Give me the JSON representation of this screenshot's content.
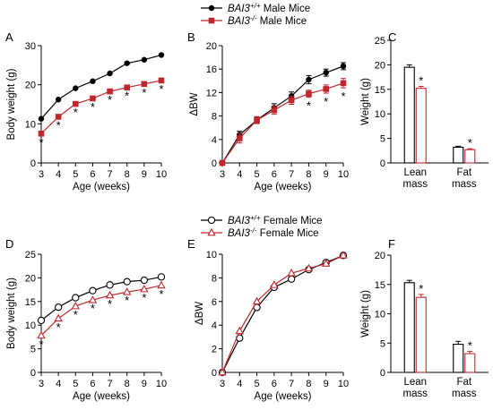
{
  "legend_top": {
    "entries": [
      {
        "genotype_base": "BAI3",
        "genotype_sup": "+/+",
        "label": "Male Mice",
        "color": "#000000",
        "marker": "filled-circle"
      },
      {
        "genotype_base": "BAI3",
        "genotype_sup": "-/-",
        "label": "Male Mice",
        "color": "#c0272d",
        "marker": "filled-square"
      }
    ]
  },
  "legend_bottom": {
    "entries": [
      {
        "genotype_base": "BAI3",
        "genotype_sup": "+/+",
        "label": "Female Mice",
        "color": "#000000",
        "marker": "open-circle"
      },
      {
        "genotype_base": "BAI3",
        "genotype_sup": "-/-",
        "label": "Female Mice",
        "color": "#c0272d",
        "marker": "open-triangle"
      }
    ]
  },
  "chart_data": [
    {
      "panel": "A",
      "type": "line",
      "xlabel": "Age (weeks)",
      "ylabel": "Body weight (g)",
      "x": [
        3,
        4,
        5,
        6,
        7,
        8,
        9,
        10
      ],
      "xlim": [
        3,
        10
      ],
      "ylim": [
        0,
        30
      ],
      "yticks": [
        0,
        10,
        20,
        30
      ],
      "series": [
        {
          "name": "BAI3+/+ Male Mice",
          "color": "#000000",
          "marker": "filled-circle",
          "values": [
            11.3,
            16.2,
            19.1,
            20.9,
            22.9,
            25.5,
            26.4,
            27.6
          ]
        },
        {
          "name": "BAI3-/- Male Mice",
          "color": "#c0272d",
          "marker": "filled-square",
          "values": [
            7.5,
            11.8,
            15.1,
            16.5,
            18.3,
            19.3,
            20.2,
            21.1
          ]
        }
      ],
      "significance": [
        "*",
        "*",
        "*",
        "*",
        "*",
        "*",
        "*",
        "*"
      ]
    },
    {
      "panel": "B",
      "type": "line",
      "xlabel": "Age (weeks)",
      "ylabel": "ΔBW",
      "x": [
        3,
        4,
        5,
        6,
        7,
        8,
        9,
        10
      ],
      "xlim": [
        3,
        10
      ],
      "ylim": [
        0,
        20
      ],
      "yticks": [
        0,
        4,
        8,
        12,
        16,
        20
      ],
      "series": [
        {
          "name": "BAI3+/+ Male Mice",
          "color": "#000000",
          "marker": "filled-circle",
          "values": [
            0,
            4.8,
            7.3,
            9.4,
            11.4,
            14.2,
            15.4,
            16.5
          ],
          "error": [
            0,
            0.6,
            0.5,
            0.7,
            0.7,
            0.7,
            0.6,
            0.6
          ]
        },
        {
          "name": "BAI3-/- Male Mice",
          "color": "#c0272d",
          "marker": "filled-square",
          "values": [
            0,
            4.2,
            7.3,
            9.0,
            10.7,
            11.8,
            12.6,
            13.6
          ],
          "error": [
            0,
            0.8,
            0.6,
            0.7,
            0.7,
            0.6,
            0.7,
            0.8
          ]
        }
      ],
      "significance": [
        "",
        "",
        "",
        "",
        "",
        "*",
        "*",
        "*"
      ]
    },
    {
      "panel": "C",
      "type": "bar",
      "ylabel": "Weight (g)",
      "categories": [
        [
          "Lean",
          "mass"
        ],
        [
          "Fat",
          "mass"
        ]
      ],
      "ylim": [
        0,
        25
      ],
      "yticks": [
        0,
        5,
        10,
        15,
        20,
        25
      ],
      "series": [
        {
          "name": "BAI3+/+ Male Mice",
          "color": "#000000",
          "values": [
            19.5,
            3.2
          ],
          "error": [
            0.5,
            0.2
          ]
        },
        {
          "name": "BAI3-/- Male Mice",
          "color": "#c0272d",
          "values": [
            15.2,
            2.7
          ],
          "error": [
            0.4,
            0.2
          ]
        }
      ],
      "significance": [
        "*",
        "*"
      ]
    },
    {
      "panel": "D",
      "type": "line",
      "xlabel": "Age (weeks)",
      "ylabel": "Body weight (g)",
      "x": [
        3,
        4,
        5,
        6,
        7,
        8,
        9,
        10
      ],
      "xlim": [
        3,
        10
      ],
      "ylim": [
        0,
        25
      ],
      "yticks": [
        0,
        5,
        10,
        15,
        20,
        25
      ],
      "series": [
        {
          "name": "BAI3+/+ Female Mice",
          "color": "#000000",
          "marker": "open-circle",
          "values": [
            11.0,
            13.8,
            15.8,
            17.3,
            18.5,
            19.2,
            19.5,
            20.2
          ]
        },
        {
          "name": "BAI3-/- Female Mice",
          "color": "#c0272d",
          "marker": "open-triangle",
          "values": [
            7.8,
            11.4,
            14.0,
            15.3,
            16.3,
            17.0,
            17.6,
            18.4
          ]
        }
      ],
      "significance": [
        "*",
        "*",
        "*",
        "*",
        "*",
        "*",
        "*",
        "*"
      ]
    },
    {
      "panel": "E",
      "type": "line",
      "xlabel": "Age (weeks)",
      "ylabel": "ΔBW",
      "x": [
        3,
        4,
        5,
        6,
        7,
        8,
        9,
        10
      ],
      "xlim": [
        3,
        10
      ],
      "ylim": [
        0,
        10
      ],
      "yticks": [
        0,
        2,
        4,
        6,
        8,
        10
      ],
      "series": [
        {
          "name": "BAI3+/+ Female Mice",
          "color": "#000000",
          "marker": "open-circle",
          "values": [
            0,
            2.9,
            5.5,
            7.2,
            7.9,
            8.7,
            9.3,
            9.9
          ]
        },
        {
          "name": "BAI3-/- Female Mice",
          "color": "#c0272d",
          "marker": "open-triangle",
          "values": [
            0,
            3.5,
            6.0,
            7.4,
            8.4,
            8.8,
            9.2,
            9.9
          ]
        }
      ],
      "significance": [
        "",
        "",
        "",
        "",
        "",
        "",
        "",
        ""
      ]
    },
    {
      "panel": "F",
      "type": "bar",
      "ylabel": "Weight (g)",
      "categories": [
        [
          "Lean",
          "mass"
        ],
        [
          "Fat",
          "mass"
        ]
      ],
      "ylim": [
        0,
        20
      ],
      "yticks": [
        0,
        5,
        10,
        15,
        20
      ],
      "series": [
        {
          "name": "BAI3+/+ Female Mice",
          "color": "#000000",
          "values": [
            15.3,
            4.8
          ],
          "error": [
            0.4,
            0.5
          ]
        },
        {
          "name": "BAI3-/- Female Mice",
          "color": "#c0272d",
          "values": [
            12.8,
            3.2
          ],
          "error": [
            0.5,
            0.4
          ]
        }
      ],
      "significance": [
        "*",
        "*"
      ]
    }
  ]
}
